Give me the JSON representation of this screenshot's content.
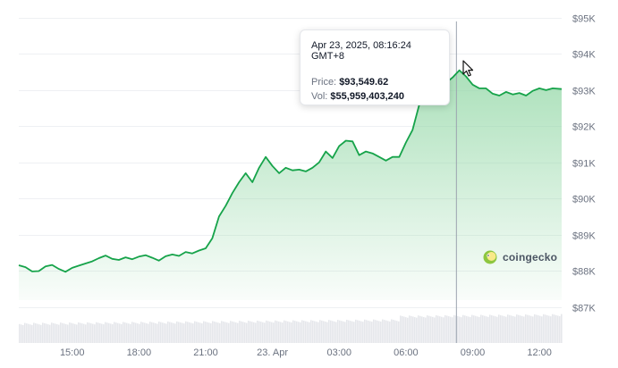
{
  "chart_data": {
    "type": "area",
    "y_unit_prefix": "$",
    "y_ticks": [
      "$87K",
      "$88K",
      "$89K",
      "$90K",
      "$91K",
      "$92K",
      "$93K",
      "$94K",
      "$95K"
    ],
    "y_tick_values": [
      87000,
      88000,
      89000,
      90000,
      91000,
      92000,
      93000,
      94000,
      95000
    ],
    "ylim": [
      86000,
      95000
    ],
    "x_ticks": [
      "15:00",
      "18:00",
      "21:00",
      "23. Apr",
      "03:00",
      "06:00",
      "09:00",
      "12:00"
    ],
    "x_tick_hours": [
      15,
      18,
      21,
      24,
      27,
      30,
      33,
      36
    ],
    "xlim_hours": [
      12.6,
      37.0
    ],
    "grid": true,
    "line_color": "#16a34a",
    "fill_color": "#8fd6a3",
    "volume_color": "#e5e7eb",
    "series": [
      {
        "values": [
          [
            12.6,
            88150
          ],
          [
            12.9,
            88100
          ],
          [
            13.2,
            87980
          ],
          [
            13.5,
            87990
          ],
          [
            13.8,
            88120
          ],
          [
            14.1,
            88160
          ],
          [
            14.4,
            88050
          ],
          [
            14.7,
            87970
          ],
          [
            15.0,
            88080
          ],
          [
            15.3,
            88140
          ],
          [
            15.6,
            88200
          ],
          [
            15.9,
            88260
          ],
          [
            16.2,
            88350
          ],
          [
            16.5,
            88420
          ],
          [
            16.8,
            88330
          ],
          [
            17.1,
            88300
          ],
          [
            17.4,
            88370
          ],
          [
            17.7,
            88320
          ],
          [
            18.0,
            88390
          ],
          [
            18.3,
            88430
          ],
          [
            18.6,
            88360
          ],
          [
            18.9,
            88280
          ],
          [
            19.2,
            88400
          ],
          [
            19.5,
            88450
          ],
          [
            19.8,
            88410
          ],
          [
            20.1,
            88520
          ],
          [
            20.4,
            88480
          ],
          [
            20.7,
            88560
          ],
          [
            21.0,
            88620
          ],
          [
            21.3,
            88900
          ],
          [
            21.6,
            89500
          ],
          [
            21.9,
            89800
          ],
          [
            22.2,
            90150
          ],
          [
            22.5,
            90450
          ],
          [
            22.8,
            90700
          ],
          [
            23.1,
            90450
          ],
          [
            23.4,
            90850
          ],
          [
            23.7,
            91150
          ],
          [
            24.0,
            90900
          ],
          [
            24.3,
            90700
          ],
          [
            24.6,
            90850
          ],
          [
            24.9,
            90780
          ],
          [
            25.2,
            90800
          ],
          [
            25.5,
            90750
          ],
          [
            25.8,
            90850
          ],
          [
            26.1,
            91000
          ],
          [
            26.4,
            91300
          ],
          [
            26.7,
            91120
          ],
          [
            27.0,
            91450
          ],
          [
            27.3,
            91600
          ],
          [
            27.6,
            91580
          ],
          [
            27.9,
            91200
          ],
          [
            28.2,
            91300
          ],
          [
            28.5,
            91250
          ],
          [
            28.8,
            91150
          ],
          [
            29.1,
            91050
          ],
          [
            29.4,
            91150
          ],
          [
            29.7,
            91150
          ],
          [
            30.0,
            91550
          ],
          [
            30.3,
            91900
          ],
          [
            30.6,
            92600
          ],
          [
            30.9,
            93050
          ],
          [
            31.2,
            93150
          ],
          [
            31.5,
            93250
          ],
          [
            31.8,
            93200
          ],
          [
            32.1,
            93350
          ],
          [
            32.4,
            93549.62
          ],
          [
            32.7,
            93380
          ],
          [
            33.0,
            93150
          ],
          [
            33.3,
            93050
          ],
          [
            33.6,
            93050
          ],
          [
            33.9,
            92900
          ],
          [
            34.2,
            92850
          ],
          [
            34.5,
            92950
          ],
          [
            34.8,
            92880
          ],
          [
            35.1,
            92920
          ],
          [
            35.4,
            92850
          ],
          [
            35.7,
            92980
          ],
          [
            36.0,
            93050
          ],
          [
            36.3,
            93000
          ],
          [
            36.6,
            93050
          ],
          [
            37.0,
            93030
          ]
        ]
      }
    ],
    "tooltip": {
      "time": "Apr 23, 2025, 08:16:24 GMT+8",
      "price_label": "Price:",
      "price_value": "$93,549.62",
      "vol_label": "Vol:",
      "vol_value": "$55,959,403,240",
      "hover_hour": 32.27
    }
  },
  "watermark": {
    "text": "coingecko"
  }
}
